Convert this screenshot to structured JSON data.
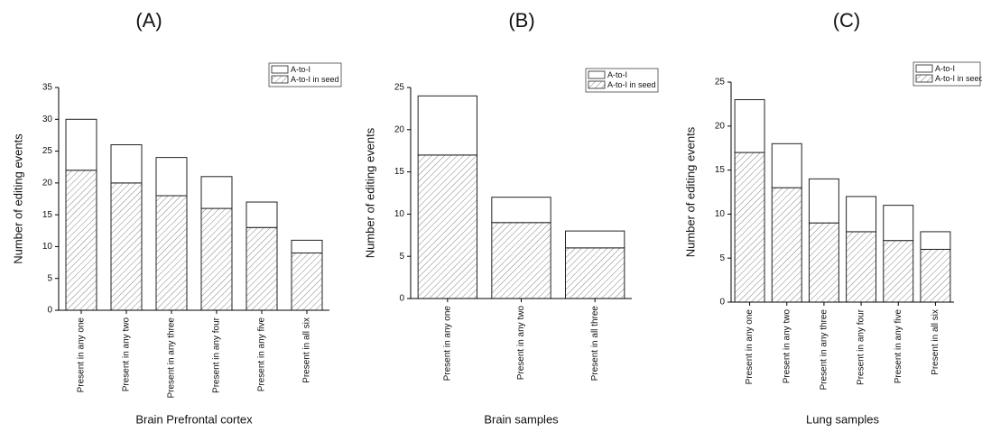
{
  "chart_data": [
    {
      "type": "bar",
      "stacked": true,
      "title": "(A)",
      "x_label": "Brain Prefrontal cortex",
      "y_label": "Number of editing events",
      "categories": [
        "Present in any one",
        "Present in any two",
        "Present in any three",
        "Present in any four",
        "Present in any five",
        "Present in all six"
      ],
      "series": [
        {
          "name": "A-to-I in seed",
          "color": "#ffffff",
          "hatch": true,
          "values": [
            22,
            20,
            18,
            16,
            13,
            9
          ]
        },
        {
          "name": "A-to-I",
          "color": "#ffffff",
          "hatch": false,
          "values": [
            8,
            6,
            6,
            5,
            4,
            2
          ]
        }
      ],
      "ylim": [
        0,
        35
      ],
      "yticks": [
        0,
        5,
        10,
        15,
        20,
        25,
        30,
        35
      ]
    },
    {
      "type": "bar",
      "stacked": true,
      "title": "(B)",
      "x_label": "Brain samples",
      "y_label": "Number of editing events",
      "categories": [
        "Present in any one",
        "Present in any two",
        "Present in all three"
      ],
      "series": [
        {
          "name": "A-to-I in seed",
          "color": "#ffffff",
          "hatch": true,
          "values": [
            17,
            9,
            6
          ]
        },
        {
          "name": "A-to-I",
          "color": "#ffffff",
          "hatch": false,
          "values": [
            7,
            3,
            2
          ]
        }
      ],
      "ylim": [
        0,
        25
      ],
      "yticks": [
        0,
        5,
        10,
        15,
        20,
        25
      ]
    },
    {
      "type": "bar",
      "stacked": true,
      "title": "(C)",
      "x_label": "Lung samples",
      "y_label": "Number of editing events",
      "categories": [
        "Present in any one",
        "Present in any two",
        "Present in any three",
        "Present in any four",
        "Present in any five",
        "Present in all six"
      ],
      "series": [
        {
          "name": "A-to-I in seed",
          "color": "#ffffff",
          "hatch": true,
          "values": [
            17,
            13,
            9,
            8,
            7,
            6
          ]
        },
        {
          "name": "A-to-I",
          "color": "#ffffff",
          "hatch": false,
          "values": [
            6,
            5,
            5,
            4,
            4,
            2
          ]
        }
      ],
      "ylim": [
        0,
        25
      ],
      "yticks": [
        0,
        5,
        10,
        15,
        20,
        25
      ]
    }
  ]
}
